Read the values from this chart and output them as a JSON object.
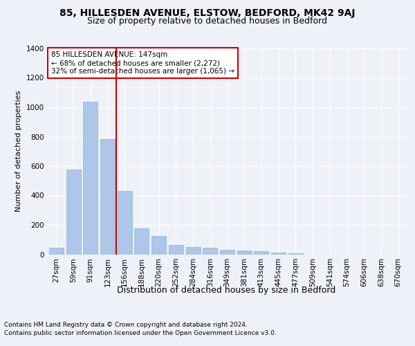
{
  "title1": "85, HILLESDEN AVENUE, ELSTOW, BEDFORD, MK42 9AJ",
  "title2": "Size of property relative to detached houses in Bedford",
  "xlabel": "Distribution of detached houses by size in Bedford",
  "ylabel": "Number of detached properties",
  "categories": [
    "27sqm",
    "59sqm",
    "91sqm",
    "123sqm",
    "156sqm",
    "188sqm",
    "220sqm",
    "252sqm",
    "284sqm",
    "316sqm",
    "349sqm",
    "381sqm",
    "413sqm",
    "445sqm",
    "477sqm",
    "509sqm",
    "541sqm",
    "574sqm",
    "606sqm",
    "638sqm",
    "670sqm"
  ],
  "values": [
    45,
    575,
    1040,
    785,
    430,
    175,
    125,
    65,
    50,
    45,
    30,
    28,
    20,
    12,
    5,
    0,
    0,
    0,
    0,
    0,
    0
  ],
  "bar_color": "#aec6e8",
  "bar_edgecolor": "#8cb4d8",
  "vline_color": "#cc0000",
  "annotation_text": "85 HILLESDEN AVENUE: 147sqm\n← 68% of detached houses are smaller (2,272)\n32% of semi-detached houses are larger (1,065) →",
  "annotation_box_color": "#ffffff",
  "annotation_box_edgecolor": "#cc0000",
  "ylim": [
    0,
    1400
  ],
  "yticks": [
    0,
    200,
    400,
    600,
    800,
    1000,
    1200,
    1400
  ],
  "footer1": "Contains HM Land Registry data © Crown copyright and database right 2024.",
  "footer2": "Contains public sector information licensed under the Open Government Licence v3.0.",
  "background_color": "#eef2f8",
  "plot_bg_color": "#eef2f8",
  "title1_fontsize": 10,
  "title2_fontsize": 9,
  "xlabel_fontsize": 9,
  "ylabel_fontsize": 8,
  "tick_fontsize": 7.5,
  "footer_fontsize": 6.5,
  "vline_bar_index": 4
}
